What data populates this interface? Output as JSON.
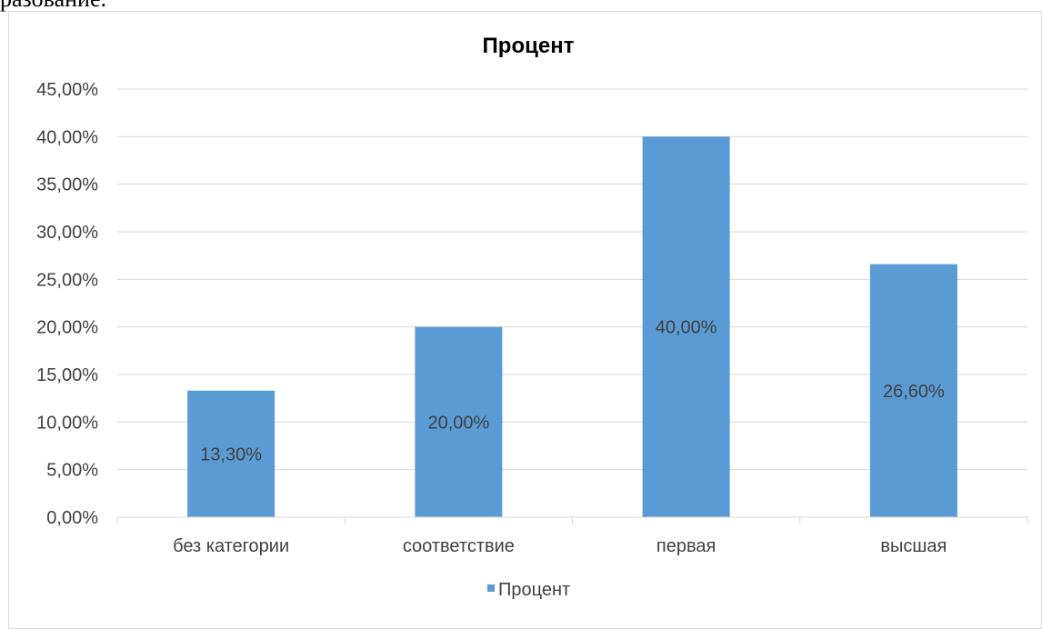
{
  "page": {
    "top_text": "разование."
  },
  "chart_data": {
    "type": "bar",
    "title": "Процент",
    "categories": [
      "без категории",
      "соответствие",
      "первая",
      "высшая"
    ],
    "series": [
      {
        "name": "Процент",
        "values": [
          13.3,
          20.0,
          40.0,
          26.6
        ],
        "labels": [
          "13,30%",
          "20,00%",
          "40,00%",
          "26,60%"
        ]
      }
    ],
    "ylim": [
      0,
      45
    ],
    "yticks": [
      "0,00%",
      "5,00%",
      "10,00%",
      "15,00%",
      "20,00%",
      "25,00%",
      "30,00%",
      "35,00%",
      "40,00%",
      "45,00%"
    ],
    "grid": true,
    "legend": "bottom",
    "colors": {
      "bar": "#5B9BD5",
      "grid": "#D9D9D9",
      "text": "#404040"
    }
  }
}
